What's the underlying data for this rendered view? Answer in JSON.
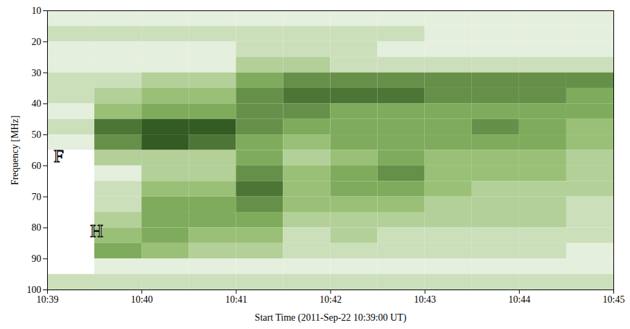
{
  "chart_data": {
    "type": "heatmap",
    "x_label": "Start Time (2011-Sep-22 10:39:00 UT)",
    "y_label": "Frequency [MHz]",
    "xlim": [
      0,
      6
    ],
    "xticks": [
      {
        "value": 0,
        "label": "10:39"
      },
      {
        "value": 1,
        "label": "10:40"
      },
      {
        "value": 2,
        "label": "10:41"
      },
      {
        "value": 3,
        "label": "10:42"
      },
      {
        "value": 4,
        "label": "10:43"
      },
      {
        "value": 5,
        "label": "10:44"
      },
      {
        "value": 6,
        "label": "10:45"
      }
    ],
    "ylim": [
      10,
      100
    ],
    "yticks": [
      10,
      20,
      30,
      40,
      50,
      60,
      70,
      80,
      90,
      100
    ],
    "x_bins": [
      0,
      0.5,
      1,
      1.5,
      2,
      2.5,
      3,
      3.5,
      4,
      4.5,
      5,
      5.5,
      6
    ],
    "y_bins": [
      10,
      15,
      20,
      25,
      30,
      35,
      40,
      45,
      50,
      55,
      60,
      65,
      70,
      75,
      80,
      85,
      90,
      95,
      100
    ],
    "zlim": [
      0,
      9
    ],
    "colors": [
      "#ffffff",
      "#8cb865",
      "#1b4010"
    ],
    "cells": [
      [
        1,
        1,
        1,
        1,
        1,
        1,
        1,
        1,
        1,
        1,
        1,
        1
      ],
      [
        2,
        2,
        2,
        2,
        2,
        2,
        2,
        2,
        1,
        1,
        1,
        1
      ],
      [
        1,
        1,
        1,
        1,
        2,
        2,
        2,
        1,
        1,
        1,
        1,
        1
      ],
      [
        1,
        1,
        1,
        1,
        3,
        3,
        2,
        2,
        2,
        2,
        2,
        2
      ],
      [
        2,
        2,
        3,
        3,
        5,
        6,
        6,
        6,
        6,
        6,
        6,
        6
      ],
      [
        2,
        3,
        4,
        4,
        6,
        7,
        7,
        7,
        6,
        6,
        6,
        5
      ],
      [
        1,
        4,
        5,
        5,
        6,
        6,
        5,
        5,
        5,
        5,
        5,
        5
      ],
      [
        2,
        7,
        8,
        8,
        6,
        5,
        5,
        5,
        5,
        6,
        5,
        4
      ],
      [
        1,
        6,
        8,
        7,
        5,
        4,
        5,
        5,
        5,
        5,
        5,
        4
      ],
      [
        0,
        3,
        3,
        3,
        5,
        3,
        4,
        5,
        4,
        4,
        4,
        3
      ],
      [
        0,
        1,
        3,
        3,
        6,
        4,
        5,
        6,
        4,
        4,
        4,
        3
      ],
      [
        0,
        2,
        4,
        4,
        7,
        4,
        5,
        5,
        4,
        3,
        3,
        3
      ],
      [
        0,
        2,
        5,
        5,
        6,
        4,
        4,
        4,
        3,
        3,
        3,
        2
      ],
      [
        0,
        3,
        5,
        5,
        5,
        3,
        3,
        3,
        3,
        3,
        3,
        2
      ],
      [
        0,
        4,
        5,
        4,
        4,
        2,
        3,
        2,
        2,
        2,
        2,
        2
      ],
      [
        0,
        5,
        4,
        3,
        3,
        2,
        2,
        2,
        2,
        2,
        2,
        1
      ],
      [
        0,
        1,
        1,
        1,
        1,
        1,
        1,
        1,
        1,
        1,
        1,
        1
      ],
      [
        2,
        2,
        2,
        2,
        2,
        2,
        2,
        2,
        2,
        2,
        2,
        2
      ]
    ],
    "annotations": [
      {
        "text": "F",
        "x": 0.12,
        "y": 57
      },
      {
        "text": "H",
        "x": 0.52,
        "y": 81
      }
    ]
  }
}
